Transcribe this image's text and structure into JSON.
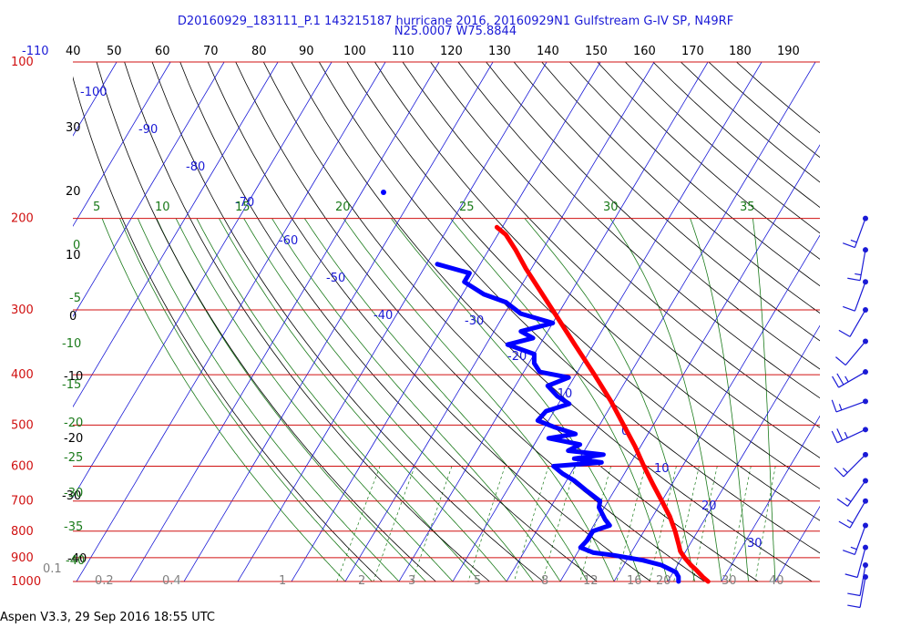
{
  "header": {
    "title_line1": "D20160929_183111_P.1 143215187 hurricane 2016, 20160929N1 Gulfstream G-IV SP, N49RF",
    "title_line2": "N25.0007 W75.8844"
  },
  "footer": {
    "text": "Aspen V3.3, 29 Sep 2016  18:55 UTC"
  },
  "chart_data": {
    "type": "line",
    "subtype": "skew-T log-P sounding",
    "colors": {
      "isobar": "#d01010",
      "isotherm": "#1a1ad6",
      "dry_adiabat": "#000000",
      "moist_adiabat": "#1a7a1a",
      "mixing_ratio": "#1a7a1a",
      "temperature": "#ff0000",
      "dewpoint": "#0000ff",
      "wind": "#1a1ad6"
    },
    "pressure_levels": [
      100,
      200,
      300,
      400,
      500,
      600,
      700,
      800,
      900,
      1000
    ],
    "top_axis_labels": [
      "-110",
      "40",
      "50",
      "60",
      "70",
      "80",
      "90",
      "100",
      "110",
      "120",
      "130",
      "140",
      "150",
      "160",
      "170",
      "180",
      "190"
    ],
    "isotherm_labels": [
      "-100",
      "-90",
      "-80",
      "-70",
      "-60",
      "-50",
      "-40",
      "-30",
      "-20",
      "-10",
      "0",
      "10",
      "20",
      "30"
    ],
    "left_labels": [
      "30",
      "20",
      "10",
      "0",
      "-10",
      "-20",
      "-30",
      "-40"
    ],
    "theta_e_labels": [
      "5",
      "10",
      "15",
      "20",
      "25",
      "30",
      "35"
    ],
    "moist_left_labels": [
      "0",
      "-5",
      "-10",
      "-15",
      "-20",
      "-25",
      "-30",
      "-35",
      "-40"
    ],
    "mixing_ratio_labels": [
      "0.1",
      "0.2",
      "0.4",
      "1",
      "2",
      "3",
      "5",
      "8",
      "12",
      "16",
      "20",
      "30",
      "40"
    ],
    "series": [
      {
        "name": "temperature",
        "points": [
          {
            "p": 1000,
            "t": 27.5
          },
          {
            "p": 980,
            "t": 26.0
          },
          {
            "p": 950,
            "t": 24.0
          },
          {
            "p": 930,
            "t": 22.5
          },
          {
            "p": 900,
            "t": 20.5
          },
          {
            "p": 875,
            "t": 19.0
          },
          {
            "p": 850,
            "t": 18.0
          },
          {
            "p": 800,
            "t": 15.8
          },
          {
            "p": 750,
            "t": 13.2
          },
          {
            "p": 700,
            "t": 10.0
          },
          {
            "p": 650,
            "t": 6.5
          },
          {
            "p": 600,
            "t": 2.8
          },
          {
            "p": 550,
            "t": -1.0
          },
          {
            "p": 500,
            "t": -5.5
          },
          {
            "p": 450,
            "t": -10.5
          },
          {
            "p": 400,
            "t": -16.5
          },
          {
            "p": 350,
            "t": -23.5
          },
          {
            "p": 300,
            "t": -31.5
          },
          {
            "p": 270,
            "t": -37.0
          },
          {
            "p": 250,
            "t": -41.0
          },
          {
            "p": 230,
            "t": -45.0
          },
          {
            "p": 215,
            "t": -48.5
          },
          {
            "p": 208,
            "t": -51.0
          }
        ]
      },
      {
        "name": "dewpoint",
        "points": [
          {
            "p": 1000,
            "t": 22.0
          },
          {
            "p": 980,
            "t": 21.5
          },
          {
            "p": 960,
            "t": 20.5
          },
          {
            "p": 930,
            "t": 17.0
          },
          {
            "p": 910,
            "t": 13.0
          },
          {
            "p": 890,
            "t": 7.0
          },
          {
            "p": 880,
            "t": 3.0
          },
          {
            "p": 860,
            "t": 0.0
          },
          {
            "p": 830,
            "t": 0.5
          },
          {
            "p": 800,
            "t": 0.5
          },
          {
            "p": 780,
            "t": 3.0
          },
          {
            "p": 760,
            "t": 1.5
          },
          {
            "p": 720,
            "t": -1.0
          },
          {
            "p": 700,
            "t": -1.5
          },
          {
            "p": 670,
            "t": -5.0
          },
          {
            "p": 640,
            "t": -8.5
          },
          {
            "p": 620,
            "t": -11.5
          },
          {
            "p": 600,
            "t": -14.0
          },
          {
            "p": 590,
            "t": -5.5
          },
          {
            "p": 580,
            "t": -11.0
          },
          {
            "p": 570,
            "t": -6.0
          },
          {
            "p": 560,
            "t": -13.0
          },
          {
            "p": 545,
            "t": -11.5
          },
          {
            "p": 530,
            "t": -18.0
          },
          {
            "p": 520,
            "t": -13.5
          },
          {
            "p": 505,
            "t": -18.0
          },
          {
            "p": 490,
            "t": -22.0
          },
          {
            "p": 470,
            "t": -21.5
          },
          {
            "p": 455,
            "t": -18.0
          },
          {
            "p": 440,
            "t": -21.0
          },
          {
            "p": 420,
            "t": -24.0
          },
          {
            "p": 405,
            "t": -21.0
          },
          {
            "p": 395,
            "t": -27.0
          },
          {
            "p": 380,
            "t": -29.0
          },
          {
            "p": 365,
            "t": -30.0
          },
          {
            "p": 350,
            "t": -36.0
          },
          {
            "p": 340,
            "t": -32.0
          },
          {
            "p": 330,
            "t": -35.0
          },
          {
            "p": 318,
            "t": -30.0
          },
          {
            "p": 305,
            "t": -37.0
          },
          {
            "p": 290,
            "t": -41.0
          },
          {
            "p": 280,
            "t": -46.0
          },
          {
            "p": 265,
            "t": -51.0
          },
          {
            "p": 255,
            "t": -51.0
          },
          {
            "p": 245,
            "t": -58.0
          }
        ]
      }
    ],
    "wind_barbs": [
      {
        "p": 200,
        "speed_kt": 15,
        "dir_deg": 200
      },
      {
        "p": 230,
        "speed_kt": 15,
        "dir_deg": 190
      },
      {
        "p": 265,
        "speed_kt": 10,
        "dir_deg": 200
      },
      {
        "p": 300,
        "speed_kt": 10,
        "dir_deg": 210
      },
      {
        "p": 345,
        "speed_kt": 10,
        "dir_deg": 220
      },
      {
        "p": 395,
        "speed_kt": 25,
        "dir_deg": 240
      },
      {
        "p": 450,
        "speed_kt": 15,
        "dir_deg": 250
      },
      {
        "p": 510,
        "speed_kt": 25,
        "dir_deg": 245
      },
      {
        "p": 570,
        "speed_kt": 15,
        "dir_deg": 225
      },
      {
        "p": 640,
        "speed_kt": 15,
        "dir_deg": 215
      },
      {
        "p": 700,
        "speed_kt": 15,
        "dir_deg": 210
      },
      {
        "p": 780,
        "speed_kt": 15,
        "dir_deg": 200
      },
      {
        "p": 860,
        "speed_kt": 10,
        "dir_deg": 195
      },
      {
        "p": 930,
        "speed_kt": 10,
        "dir_deg": 190
      },
      {
        "p": 980,
        "speed_kt": 10,
        "dir_deg": 190
      }
    ]
  }
}
